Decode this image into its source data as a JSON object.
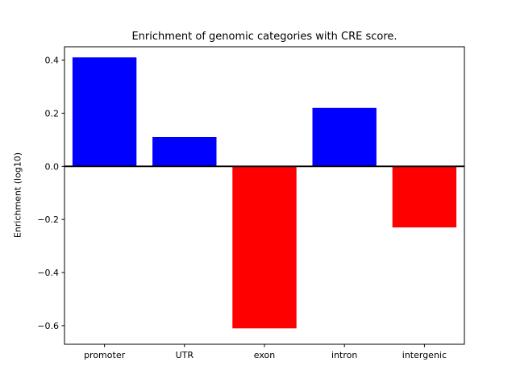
{
  "chart_data": {
    "type": "bar",
    "title": "Enrichment of genomic categories with CRE score.",
    "ylabel": "Enrichment (log10)",
    "xlabel": "",
    "categories": [
      "promoter",
      "UTR",
      "exon",
      "intron",
      "intergenic"
    ],
    "values": [
      0.41,
      0.11,
      -0.61,
      0.22,
      -0.23
    ],
    "bar_colors": [
      "#0000ff",
      "#0000ff",
      "#ff0000",
      "#0000ff",
      "#ff0000"
    ],
    "positive_color": "#0000ff",
    "negative_color": "#ff0000",
    "yticks": [
      0.4,
      0.2,
      0.0,
      -0.2,
      -0.4,
      -0.6
    ],
    "ylim": [
      -0.67,
      0.45
    ],
    "zero_line": true,
    "grid": false,
    "legend_position": "none",
    "axis_color": "#000000"
  }
}
